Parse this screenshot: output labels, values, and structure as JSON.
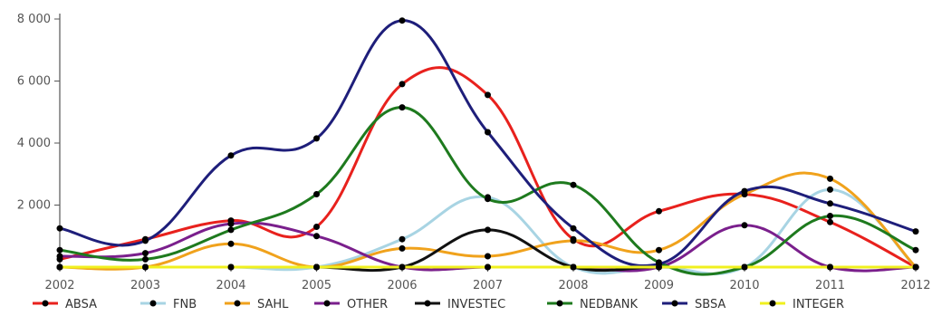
{
  "chart_data": {
    "type": "line",
    "title": "",
    "xlabel": "",
    "ylabel": "",
    "x": [
      "2002",
      "2003",
      "2004",
      "2005",
      "2006",
      "2007",
      "2008",
      "2009",
      "2010",
      "2011",
      "2012"
    ],
    "y_ticks": [
      {
        "value": 2000,
        "label": "2 000"
      },
      {
        "value": 4000,
        "label": "4 000"
      },
      {
        "value": 6000,
        "label": "6 000"
      },
      {
        "value": 8000,
        "label": "8 000"
      }
    ],
    "ylim": [
      0,
      8000
    ],
    "grid": false,
    "legend_position": "bottom",
    "series": [
      {
        "name": "ABSA",
        "color": "#e8211d",
        "values": [
          250,
          900,
          1500,
          1300,
          5900,
          5550,
          900,
          1800,
          2350,
          1450,
          0
        ]
      },
      {
        "name": "FNB",
        "color": "#a8d4e3",
        "values": [
          0,
          0,
          0,
          0,
          900,
          2250,
          0,
          0,
          0,
          2500,
          0
        ]
      },
      {
        "name": "SAHL",
        "color": "#f0a21c",
        "values": [
          0,
          0,
          750,
          0,
          600,
          350,
          850,
          550,
          2350,
          2850,
          0
        ]
      },
      {
        "name": "OTHER",
        "color": "#7a1f8c",
        "values": [
          350,
          450,
          1400,
          1000,
          0,
          0,
          0,
          0,
          1350,
          0,
          0
        ]
      },
      {
        "name": "INVESTEC",
        "color": "#111111",
        "values": [
          0,
          0,
          0,
          0,
          0,
          1200,
          0,
          0,
          0,
          0,
          0
        ]
      },
      {
        "name": "NEDBANK",
        "color": "#1e7a1e",
        "values": [
          550,
          250,
          1200,
          2350,
          5150,
          2200,
          2650,
          150,
          0,
          1650,
          550
        ]
      },
      {
        "name": "SBSA",
        "color": "#1e1e7a",
        "values": [
          1250,
          850,
          3600,
          4150,
          7950,
          4350,
          1250,
          100,
          2450,
          2050,
          1150
        ]
      },
      {
        "name": "INTEGER",
        "color": "#f0f01e",
        "values": [
          0,
          0,
          0,
          0,
          0,
          0,
          0,
          0,
          0,
          0,
          0
        ]
      }
    ]
  }
}
